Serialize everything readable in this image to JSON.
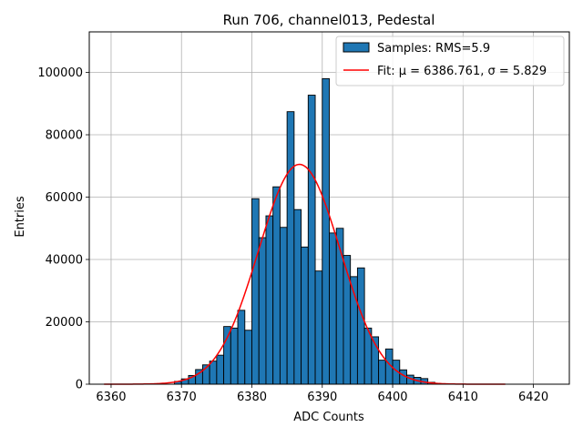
{
  "chart_data": {
    "type": "bar",
    "title": "Run 706, channel013, Pedestal",
    "xlabel": "ADC Counts",
    "ylabel": "Entries",
    "xlim": [
      6356.9,
      6425.1
    ],
    "ylim": [
      0,
      113000
    ],
    "xticks": [
      6360,
      6370,
      6380,
      6390,
      6400,
      6410,
      6420
    ],
    "yticks": [
      0,
      20000,
      40000,
      60000,
      80000,
      100000
    ],
    "grid": true,
    "legend_position": "top-right",
    "histogram": {
      "name": "Samples: RMS=5.9",
      "color": "#1f77b4",
      "bin_width": 1,
      "bin_left_edges": [
        6369,
        6370,
        6371,
        6372,
        6373,
        6374,
        6375,
        6376,
        6377,
        6378,
        6379,
        6380,
        6381,
        6382,
        6383,
        6384,
        6385,
        6386,
        6387,
        6388,
        6389,
        6390,
        6391,
        6392,
        6393,
        6394,
        6395,
        6396,
        6397,
        6398,
        6399,
        6400,
        6401,
        6402,
        6403,
        6404,
        6405
      ],
      "counts": [
        900,
        1700,
        2800,
        4700,
        6200,
        7400,
        9300,
        18500,
        18000,
        23700,
        17300,
        59500,
        47000,
        54000,
        63300,
        50300,
        87400,
        56000,
        44000,
        92700,
        36300,
        98000,
        48500,
        50000,
        41300,
        34500,
        37300,
        18000,
        15200,
        7700,
        11300,
        7700,
        4600,
        2900,
        2200,
        1800,
        600
      ]
    },
    "fit": {
      "name": "Fit: μ = 6386.761, σ = 5.829",
      "color": "#ff0000",
      "mu": 6386.761,
      "sigma": 5.829,
      "amplitude": 70500,
      "x_range": [
        6359,
        6416
      ]
    }
  }
}
